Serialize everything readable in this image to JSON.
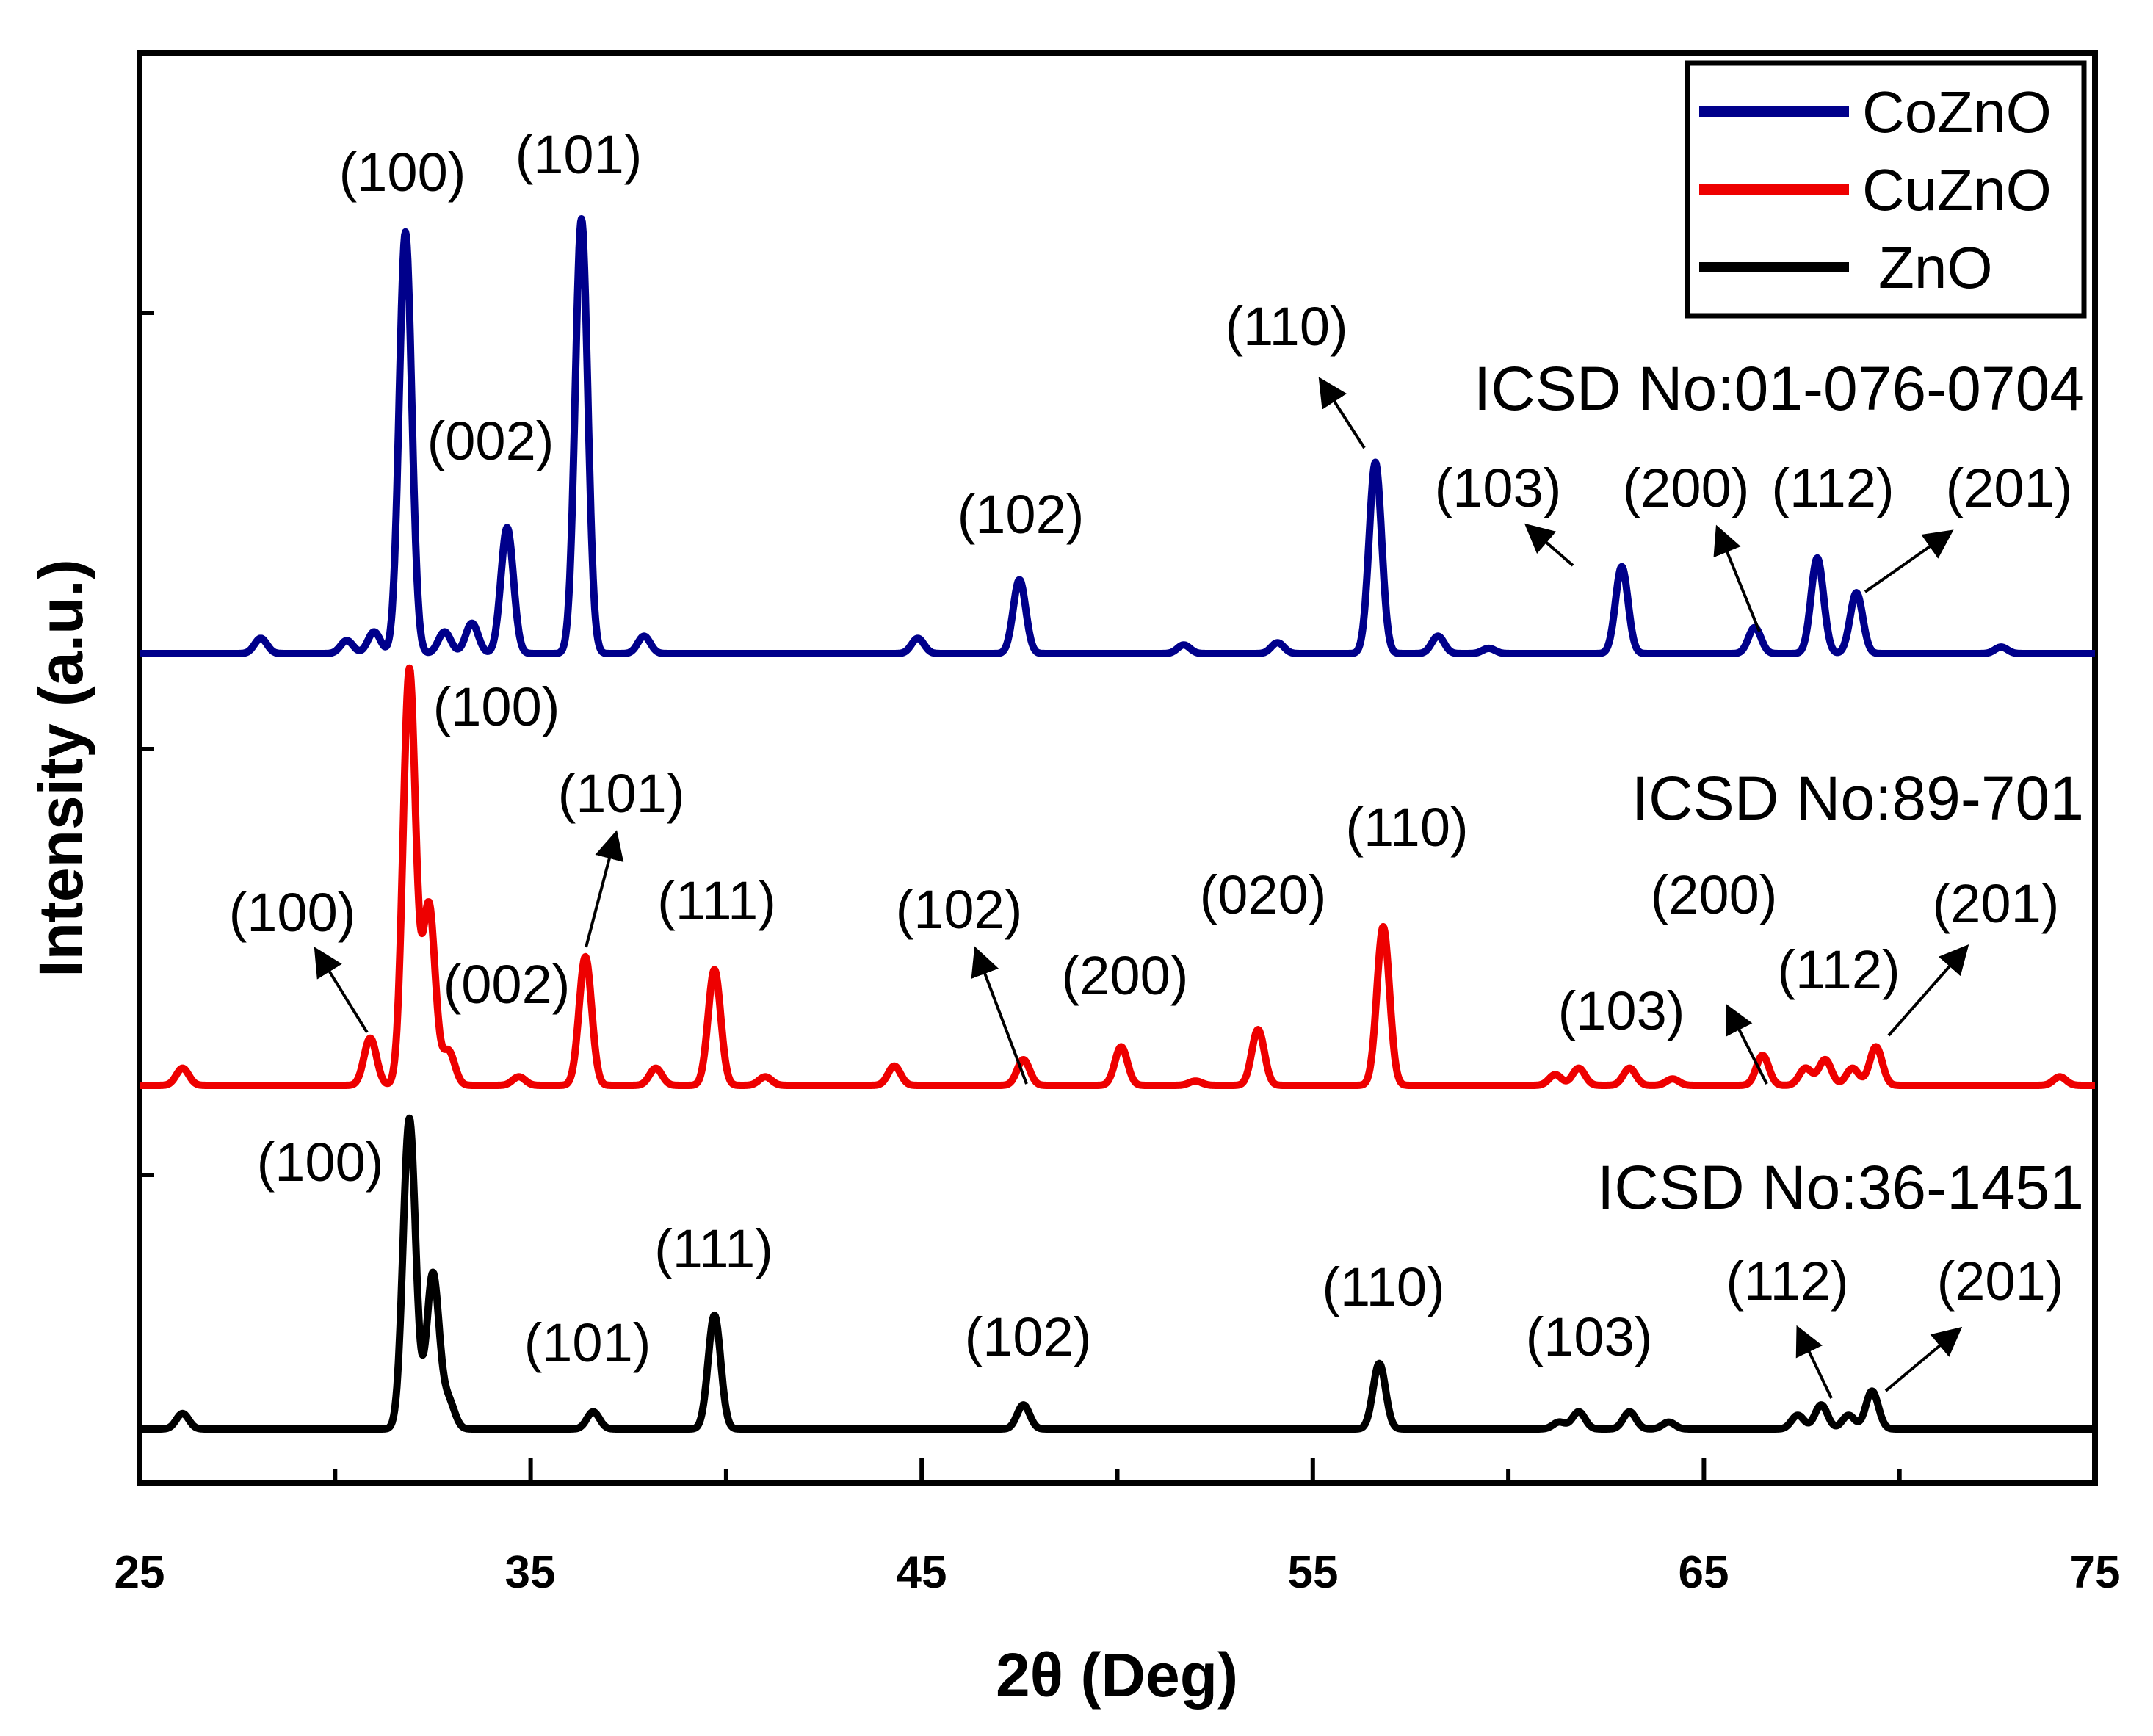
{
  "chart_data": {
    "type": "line",
    "title": "",
    "xlabel": "2θ (Deg)",
    "ylabel": "Intensity (a.u.)",
    "xlim": [
      25,
      75
    ],
    "xticks": [
      25,
      35,
      45,
      55,
      65,
      75
    ],
    "xtick_labels": [
      "25",
      "35",
      "45",
      "55",
      "65",
      "75"
    ],
    "legend": {
      "position": "top-right",
      "entries": [
        "CoZnO",
        "CuZnO",
        "ZnO"
      ]
    },
    "series": [
      {
        "name": "CoZnO",
        "color": "#00008b",
        "icsd": "ICSD No:01-076-0704",
        "baseline": 0,
        "peaks": [
          {
            "x": 28.1,
            "h": 0.035
          },
          {
            "x": 30.3,
            "h": 0.03
          },
          {
            "x": 31.0,
            "h": 0.05
          },
          {
            "x": 31.8,
            "h": 0.97
          },
          {
            "x": 32.8,
            "h": 0.05
          },
          {
            "x": 33.5,
            "h": 0.07
          },
          {
            "x": 34.4,
            "h": 0.29
          },
          {
            "x": 36.3,
            "h": 1.0
          },
          {
            "x": 37.9,
            "h": 0.04
          },
          {
            "x": 44.9,
            "h": 0.035
          },
          {
            "x": 47.5,
            "h": 0.17
          },
          {
            "x": 51.7,
            "h": 0.02
          },
          {
            "x": 54.1,
            "h": 0.025
          },
          {
            "x": 56.6,
            "h": 0.44
          },
          {
            "x": 58.2,
            "h": 0.04
          },
          {
            "x": 59.5,
            "h": 0.012
          },
          {
            "x": 62.9,
            "h": 0.2
          },
          {
            "x": 66.3,
            "h": 0.06
          },
          {
            "x": 67.9,
            "h": 0.22
          },
          {
            "x": 68.9,
            "h": 0.14
          },
          {
            "x": 72.6,
            "h": 0.015
          }
        ]
      },
      {
        "name": "CuZnO",
        "color": "#ee0000",
        "icsd": "ICSD No:89-701",
        "baseline": 0,
        "peaks": [
          {
            "x": 26.1,
            "h": 0.04
          },
          {
            "x": 30.9,
            "h": 0.11
          },
          {
            "x": 31.9,
            "h": 0.97
          },
          {
            "x": 32.4,
            "h": 0.42
          },
          {
            "x": 32.9,
            "h": 0.08
          },
          {
            "x": 34.7,
            "h": 0.02
          },
          {
            "x": 36.4,
            "h": 0.3
          },
          {
            "x": 38.2,
            "h": 0.04
          },
          {
            "x": 39.7,
            "h": 0.27
          },
          {
            "x": 41.0,
            "h": 0.02
          },
          {
            "x": 44.3,
            "h": 0.045
          },
          {
            "x": 47.6,
            "h": 0.06
          },
          {
            "x": 50.1,
            "h": 0.09
          },
          {
            "x": 52.0,
            "h": 0.01
          },
          {
            "x": 53.6,
            "h": 0.13
          },
          {
            "x": 56.8,
            "h": 0.37
          },
          {
            "x": 61.2,
            "h": 0.025
          },
          {
            "x": 61.8,
            "h": 0.04
          },
          {
            "x": 63.1,
            "h": 0.04
          },
          {
            "x": 64.2,
            "h": 0.015
          },
          {
            "x": 66.5,
            "h": 0.07
          },
          {
            "x": 67.6,
            "h": 0.04
          },
          {
            "x": 68.1,
            "h": 0.06
          },
          {
            "x": 68.8,
            "h": 0.04
          },
          {
            "x": 69.4,
            "h": 0.09
          },
          {
            "x": 74.1,
            "h": 0.02
          }
        ]
      },
      {
        "name": "ZnO",
        "color": "#000000",
        "icsd": "ICSD No:36-1451",
        "baseline": 0,
        "peaks": [
          {
            "x": 26.1,
            "h": 0.045
          },
          {
            "x": 31.9,
            "h": 0.9
          },
          {
            "x": 32.5,
            "h": 0.45
          },
          {
            "x": 32.9,
            "h": 0.08
          },
          {
            "x": 36.6,
            "h": 0.05
          },
          {
            "x": 39.7,
            "h": 0.33
          },
          {
            "x": 47.6,
            "h": 0.07
          },
          {
            "x": 56.7,
            "h": 0.19
          },
          {
            "x": 61.3,
            "h": 0.02
          },
          {
            "x": 61.8,
            "h": 0.05
          },
          {
            "x": 63.1,
            "h": 0.05
          },
          {
            "x": 64.1,
            "h": 0.02
          },
          {
            "x": 67.4,
            "h": 0.04
          },
          {
            "x": 68.0,
            "h": 0.07
          },
          {
            "x": 68.7,
            "h": 0.04
          },
          {
            "x": 69.3,
            "h": 0.11
          }
        ]
      }
    ],
    "annotations": [
      {
        "series": "CoZnO",
        "text": "(100)",
        "arrow": false
      },
      {
        "series": "CoZnO",
        "text": "(101)",
        "arrow": false
      },
      {
        "series": "CoZnO",
        "text": "(002)",
        "arrow": false
      },
      {
        "series": "CoZnO",
        "text": "(102)",
        "arrow": false
      },
      {
        "series": "CoZnO",
        "text": "(110)",
        "arrow": true
      },
      {
        "series": "CoZnO",
        "text": "(103)",
        "arrow": true
      },
      {
        "series": "CoZnO",
        "text": "(200)",
        "arrow": true
      },
      {
        "series": "CoZnO",
        "text": "(112)",
        "arrow": false
      },
      {
        "series": "CoZnO",
        "text": "(201)",
        "arrow": true
      },
      {
        "series": "CuZnO",
        "text": "(100)",
        "arrow": false
      },
      {
        "series": "CuZnO",
        "text": "(100)",
        "arrow": true
      },
      {
        "series": "CuZnO",
        "text": "(002)",
        "arrow": false
      },
      {
        "series": "CuZnO",
        "text": "(101)",
        "arrow": true
      },
      {
        "series": "CuZnO",
        "text": "(111)",
        "arrow": false
      },
      {
        "series": "CuZnO",
        "text": "(102)",
        "arrow": true
      },
      {
        "series": "CuZnO",
        "text": "(200)",
        "arrow": false
      },
      {
        "series": "CuZnO",
        "text": "(020)",
        "arrow": false
      },
      {
        "series": "CuZnO",
        "text": "(110)",
        "arrow": false
      },
      {
        "series": "CuZnO",
        "text": "(103)",
        "arrow": false
      },
      {
        "series": "CuZnO",
        "text": "(200)",
        "arrow": true
      },
      {
        "series": "CuZnO",
        "text": "(112)",
        "arrow": false
      },
      {
        "series": "CuZnO",
        "text": "(201)",
        "arrow": true
      },
      {
        "series": "ZnO",
        "text": "(100)",
        "arrow": false
      },
      {
        "series": "ZnO",
        "text": "(101)",
        "arrow": false
      },
      {
        "series": "ZnO",
        "text": "(111)",
        "arrow": false
      },
      {
        "series": "ZnO",
        "text": "(102)",
        "arrow": false
      },
      {
        "series": "ZnO",
        "text": "(110)",
        "arrow": false
      },
      {
        "series": "ZnO",
        "text": "(103)",
        "arrow": false
      },
      {
        "series": "ZnO",
        "text": "(112)",
        "arrow": true
      },
      {
        "series": "ZnO",
        "text": "(201)",
        "arrow": true
      }
    ]
  }
}
